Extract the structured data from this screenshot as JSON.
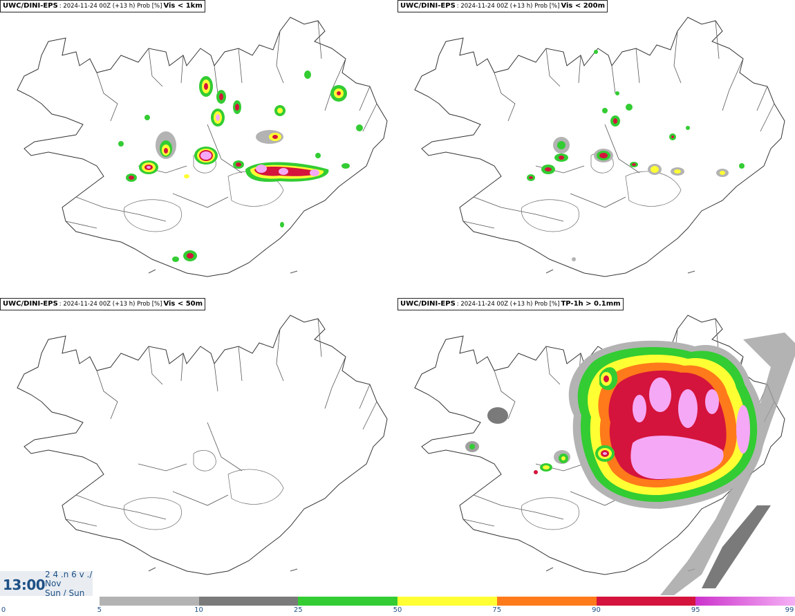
{
  "panels": [
    {
      "source": "UWC/DINI-EPS",
      "meta": ": 2024-11-24 00Z (+13 h) Prob [%]",
      "variable": "Vis < 1km"
    },
    {
      "source": "UWC/DINI-EPS",
      "meta": ": 2024-11-24 00Z (+13 h) Prob [%]",
      "variable": "Vis < 200m"
    },
    {
      "source": "UWC/DINI-EPS",
      "meta": ": 2024-11-24 00Z (+13 h) Prob [%]",
      "variable": "Vis < 50m"
    },
    {
      "source": "UWC/DINI-EPS",
      "meta": ": 2024-11-24 00Z (+13 h) Prob [%]",
      "variable": "TP-1h > 0.1mm"
    }
  ],
  "time_box": {
    "time": "13:00",
    "line1": "2 4 .n 6 v ./",
    "line2": "Nov",
    "line3": "Sun / Sun"
  },
  "colorbar": {
    "ticks": [
      "0",
      "5",
      "10",
      "25",
      "50",
      "75",
      "90",
      "95",
      "99"
    ],
    "colors": [
      "#ffffff",
      "#b3b3b3",
      "#7a7a7a",
      "#33cc33",
      "#ffff33",
      "#ff7a1a",
      "#d4143c",
      "#cc33cc"
    ]
  }
}
